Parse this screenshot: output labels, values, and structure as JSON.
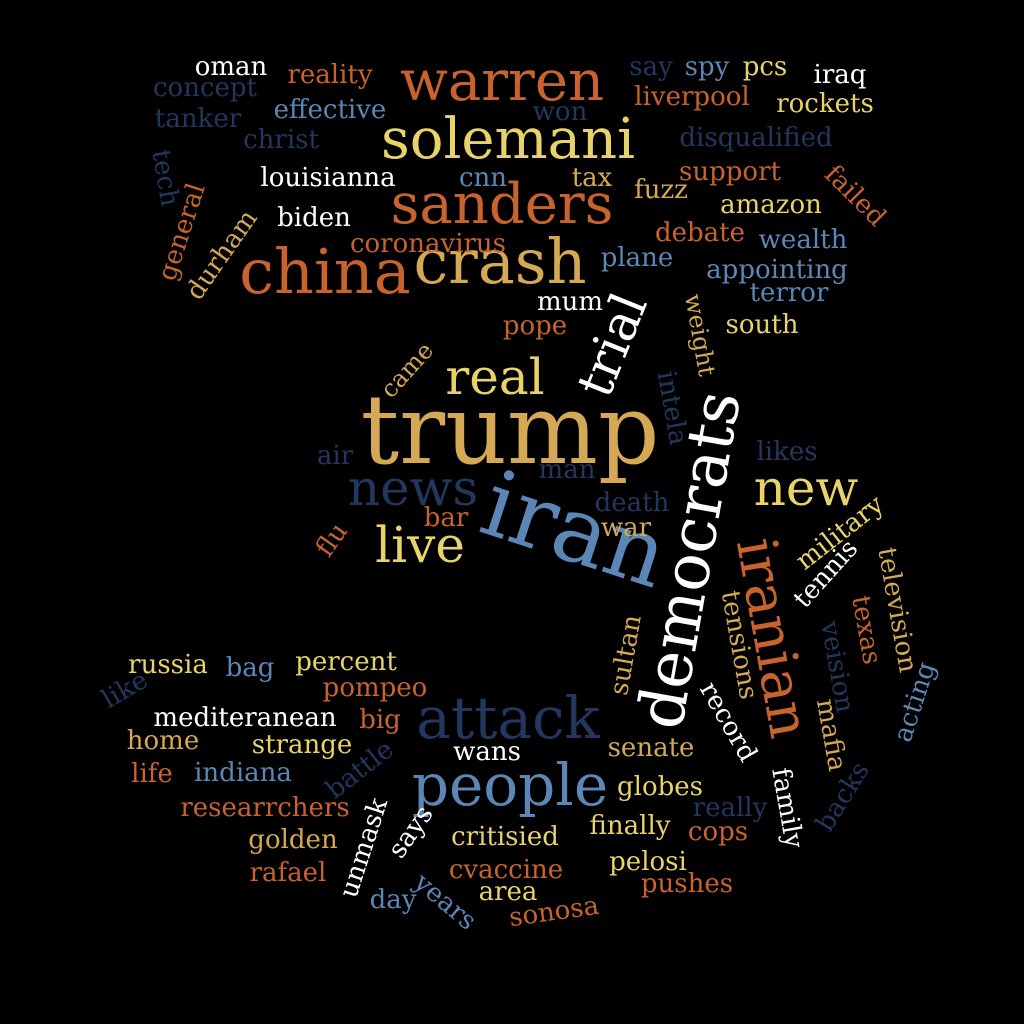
{
  "palette": {
    "background": "#000000",
    "white": "#ffffff",
    "gold": "#d4a854",
    "yellow": "#e8d36a",
    "orange": "#c8632e",
    "light_blue": "#5b86b5",
    "dark_blue": "#22375d"
  },
  "words": [
    {
      "text": "trump",
      "color": "gold",
      "vertical": false
    },
    {
      "text": "iran",
      "color": "light_blue",
      "vertical": false
    },
    {
      "text": "democrats",
      "color": "white",
      "vertical": true
    },
    {
      "text": "crash",
      "color": "gold",
      "vertical": false
    },
    {
      "text": "china",
      "color": "orange",
      "vertical": false
    },
    {
      "text": "sanders",
      "color": "orange",
      "vertical": false
    },
    {
      "text": "solemani",
      "color": "yellow",
      "vertical": false
    },
    {
      "text": "warren",
      "color": "orange",
      "vertical": false
    },
    {
      "text": "people",
      "color": "light_blue",
      "vertical": false
    },
    {
      "text": "attack",
      "color": "dark_blue",
      "vertical": false
    },
    {
      "text": "news",
      "color": "dark_blue",
      "vertical": false
    },
    {
      "text": "iranian",
      "color": "orange",
      "vertical": true
    },
    {
      "text": "real",
      "color": "yellow",
      "vertical": false
    },
    {
      "text": "trial",
      "color": "white",
      "vertical": true
    },
    {
      "text": "new",
      "color": "yellow",
      "vertical": false
    },
    {
      "text": "live",
      "color": "yellow",
      "vertical": false
    },
    {
      "text": "oman",
      "color": "white",
      "vertical": false
    },
    {
      "text": "reality",
      "color": "orange",
      "vertical": false
    },
    {
      "text": "concept",
      "color": "dark_blue",
      "vertical": false
    },
    {
      "text": "effective",
      "color": "light_blue",
      "vertical": false
    },
    {
      "text": "tanker",
      "color": "dark_blue",
      "vertical": false
    },
    {
      "text": "christ",
      "color": "dark_blue",
      "vertical": false
    },
    {
      "text": "tech",
      "color": "dark_blue",
      "vertical": true
    },
    {
      "text": "general",
      "color": "orange",
      "vertical": true
    },
    {
      "text": "durham",
      "color": "gold",
      "vertical": true
    },
    {
      "text": "louisianna",
      "color": "white",
      "vertical": false
    },
    {
      "text": "biden",
      "color": "white",
      "vertical": false
    },
    {
      "text": "coronavirus",
      "color": "orange",
      "vertical": false
    },
    {
      "text": "mum",
      "color": "white",
      "vertical": false
    },
    {
      "text": "pope",
      "color": "orange",
      "vertical": false
    },
    {
      "text": "cnn",
      "color": "light_blue",
      "vertical": false
    },
    {
      "text": "tax",
      "color": "gold",
      "vertical": false
    },
    {
      "text": "won",
      "color": "dark_blue",
      "vertical": false
    },
    {
      "text": "say",
      "color": "dark_blue",
      "vertical": false
    },
    {
      "text": "spy",
      "color": "light_blue",
      "vertical": false
    },
    {
      "text": "pcs",
      "color": "yellow",
      "vertical": false
    },
    {
      "text": "iraq",
      "color": "white",
      "vertical": false
    },
    {
      "text": "liverpool",
      "color": "orange",
      "vertical": false
    },
    {
      "text": "rockets",
      "color": "yellow",
      "vertical": false
    },
    {
      "text": "disqualified",
      "color": "dark_blue",
      "vertical": false
    },
    {
      "text": "failed",
      "color": "orange",
      "vertical": true
    },
    {
      "text": "support",
      "color": "orange",
      "vertical": false
    },
    {
      "text": "fuzz",
      "color": "gold",
      "vertical": false
    },
    {
      "text": "amazon",
      "color": "yellow",
      "vertical": false
    },
    {
      "text": "debate",
      "color": "orange",
      "vertical": false
    },
    {
      "text": "wealth",
      "color": "light_blue",
      "vertical": false
    },
    {
      "text": "plane",
      "color": "light_blue",
      "vertical": false
    },
    {
      "text": "appointing",
      "color": "light_blue",
      "vertical": false
    },
    {
      "text": "terror",
      "color": "light_blue",
      "vertical": false
    },
    {
      "text": "weight",
      "color": "gold",
      "vertical": true
    },
    {
      "text": "south",
      "color": "yellow",
      "vertical": false
    },
    {
      "text": "came",
      "color": "gold",
      "vertical": false
    },
    {
      "text": "intela",
      "color": "dark_blue",
      "vertical": true
    },
    {
      "text": "likes",
      "color": "dark_blue",
      "vertical": false
    },
    {
      "text": "air",
      "color": "dark_blue",
      "vertical": false
    },
    {
      "text": "man",
      "color": "dark_blue",
      "vertical": false
    },
    {
      "text": "death",
      "color": "dark_blue",
      "vertical": false
    },
    {
      "text": "bar",
      "color": "orange",
      "vertical": false
    },
    {
      "text": "war",
      "color": "gold",
      "vertical": false
    },
    {
      "text": "flu",
      "color": "orange",
      "vertical": false
    },
    {
      "text": "military",
      "color": "yellow",
      "vertical": false
    },
    {
      "text": "tennis",
      "color": "white",
      "vertical": false
    },
    {
      "text": "television",
      "color": "gold",
      "vertical": true
    },
    {
      "text": "texas",
      "color": "orange",
      "vertical": true
    },
    {
      "text": "veision",
      "color": "dark_blue",
      "vertical": true
    },
    {
      "text": "tensions",
      "color": "gold",
      "vertical": true
    },
    {
      "text": "sultan",
      "color": "gold",
      "vertical": true
    },
    {
      "text": "record",
      "color": "white",
      "vertical": true
    },
    {
      "text": "mafia",
      "color": "gold",
      "vertical": true
    },
    {
      "text": "acting",
      "color": "light_blue",
      "vertical": true
    },
    {
      "text": "backs",
      "color": "dark_blue",
      "vertical": true
    },
    {
      "text": "family",
      "color": "white",
      "vertical": true
    },
    {
      "text": "russia",
      "color": "yellow",
      "vertical": false
    },
    {
      "text": "bag",
      "color": "light_blue",
      "vertical": false
    },
    {
      "text": "percent",
      "color": "yellow",
      "vertical": false
    },
    {
      "text": "like",
      "color": "dark_blue",
      "vertical": false
    },
    {
      "text": "pompeo",
      "color": "orange",
      "vertical": false
    },
    {
      "text": "mediteranean",
      "color": "white",
      "vertical": false
    },
    {
      "text": "big",
      "color": "orange",
      "vertical": false
    },
    {
      "text": "home",
      "color": "gold",
      "vertical": false
    },
    {
      "text": "strange",
      "color": "yellow",
      "vertical": false
    },
    {
      "text": "life",
      "color": "orange",
      "vertical": false
    },
    {
      "text": "indiana",
      "color": "light_blue",
      "vertical": false
    },
    {
      "text": "battle",
      "color": "dark_blue",
      "vertical": false
    },
    {
      "text": "wans",
      "color": "white",
      "vertical": false
    },
    {
      "text": "senate",
      "color": "gold",
      "vertical": false
    },
    {
      "text": "globes",
      "color": "yellow",
      "vertical": false
    },
    {
      "text": "really",
      "color": "dark_blue",
      "vertical": false
    },
    {
      "text": "researrchers",
      "color": "orange",
      "vertical": false
    },
    {
      "text": "golden",
      "color": "gold",
      "vertical": false
    },
    {
      "text": "rafael",
      "color": "orange",
      "vertical": false
    },
    {
      "text": "unmask",
      "color": "white",
      "vertical": true
    },
    {
      "text": "says",
      "color": "white",
      "vertical": false
    },
    {
      "text": "critisied",
      "color": "yellow",
      "vertical": false
    },
    {
      "text": "finally",
      "color": "yellow",
      "vertical": false
    },
    {
      "text": "cops",
      "color": "orange",
      "vertical": false
    },
    {
      "text": "cvaccine",
      "color": "orange",
      "vertical": false
    },
    {
      "text": "pelosi",
      "color": "yellow",
      "vertical": false
    },
    {
      "text": "day",
      "color": "light_blue",
      "vertical": false
    },
    {
      "text": "years",
      "color": "light_blue",
      "vertical": false
    },
    {
      "text": "area",
      "color": "yellow",
      "vertical": false
    },
    {
      "text": "sonosa",
      "color": "orange",
      "vertical": false
    },
    {
      "text": "pushes",
      "color": "orange",
      "vertical": false
    }
  ]
}
